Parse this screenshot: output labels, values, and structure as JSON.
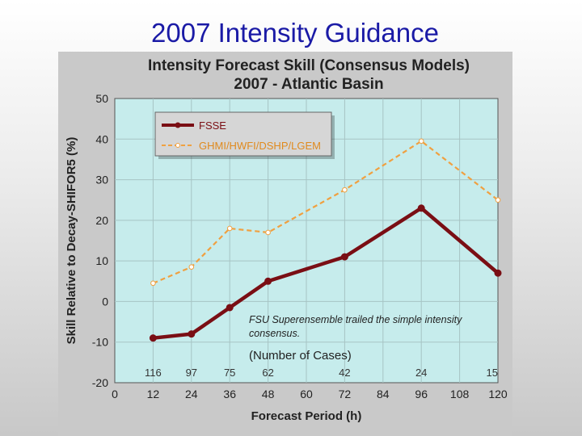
{
  "slide": {
    "title": "2007 Intensity Guidance"
  },
  "chart_data": {
    "type": "line",
    "title": "Intensity Forecast Skill (Consensus Models)",
    "subtitle": "2007 - Atlantic Basin",
    "xlabel": "Forecast Period (h)",
    "ylabel": "Skill Relative to Decay-SHIFOR5 (%)",
    "xlim": [
      0,
      120
    ],
    "ylim": [
      -20,
      50
    ],
    "xticks": [
      0,
      12,
      24,
      36,
      48,
      60,
      72,
      84,
      96,
      108,
      120
    ],
    "yticks": [
      -20,
      -10,
      0,
      10,
      20,
      30,
      40,
      50
    ],
    "grid": true,
    "legend_position": "top-left",
    "series": [
      {
        "name": "FSSE",
        "color": "#7a0e14",
        "style": "solid",
        "x": [
          12,
          24,
          36,
          48,
          72,
          96,
          120
        ],
        "y": [
          -9,
          -8,
          -1.5,
          5,
          11,
          23,
          7
        ]
      },
      {
        "name": "GHMI/HWFI/DSHP/LGEM",
        "color": "#f0a040",
        "style": "dashed",
        "x": [
          12,
          24,
          36,
          48,
          72,
          96,
          120
        ],
        "y": [
          4.5,
          8.5,
          18,
          17,
          27.5,
          39.5,
          25
        ]
      }
    ],
    "cases_label": "(Number of Cases)",
    "cases": [
      {
        "x": 12,
        "n": "116"
      },
      {
        "x": 24,
        "n": "97"
      },
      {
        "x": 36,
        "n": "75"
      },
      {
        "x": 48,
        "n": "62"
      },
      {
        "x": 72,
        "n": "42"
      },
      {
        "x": 96,
        "n": "24"
      },
      {
        "x": 120,
        "n": "15"
      }
    ],
    "annotation": [
      "FSU Superensemble trailed the simple intensity",
      "consensus."
    ]
  }
}
